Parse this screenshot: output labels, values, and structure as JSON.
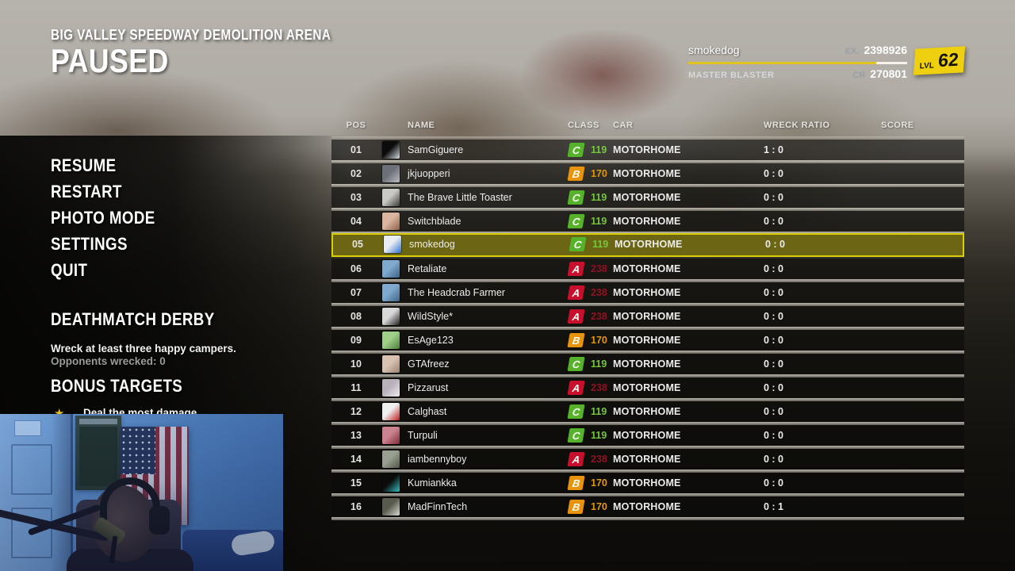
{
  "header": {
    "arena_title": "BIG VALLEY SPEEDWAY DEMOLITION ARENA",
    "paused_label": "PAUSED"
  },
  "player": {
    "name": "smokedog",
    "rank": "MASTER BLASTER",
    "ex_label": "EX.",
    "ex_value": "2398926",
    "cr_label": "CR",
    "cr_value": "270801",
    "lvl_label": "LVL",
    "level": "62",
    "xp_progress_pct": 86
  },
  "menu": {
    "items": [
      {
        "id": "resume",
        "label": "RESUME"
      },
      {
        "id": "restart",
        "label": "RESTART"
      },
      {
        "id": "photo-mode",
        "label": "PHOTO MODE"
      },
      {
        "id": "settings",
        "label": "SETTINGS"
      },
      {
        "id": "quit",
        "label": "QUIT"
      }
    ]
  },
  "objective": {
    "title": "DEATHMATCH DERBY",
    "description": "Wreck at least three happy campers.",
    "progress": "Opponents wrecked: 0"
  },
  "bonus": {
    "title": "BONUS TARGETS",
    "items": [
      {
        "icon": "star-icon",
        "label": "Deal the most damage"
      }
    ]
  },
  "scoreboard": {
    "columns": {
      "pos": "POS",
      "name": "NAME",
      "class": "CLASS",
      "car": "CAR",
      "wreck_ratio": "WRECK RATIO",
      "score": "SCORE"
    },
    "class_styles": {
      "A": {
        "badge": "#c8102e",
        "text": "#8e1322"
      },
      "B": {
        "badge": "#e8930e",
        "text": "#dd9715"
      },
      "C": {
        "badge": "#56b22a",
        "text": "#74c83c"
      }
    },
    "highlight_colors": {
      "background": "#6c6614",
      "border": "#d9ce07"
    },
    "rows": [
      {
        "pos": "01",
        "name": "SamGiguere",
        "class": "C",
        "rating": "119",
        "car": "MOTORHOME",
        "wreck_ratio": "1 : 0",
        "score": "",
        "avatar": [
          "#0c0c0c",
          "#d8dde2"
        ]
      },
      {
        "pos": "02",
        "name": "jkjuopperi",
        "class": "B",
        "rating": "170",
        "car": "MOTORHOME",
        "wreck_ratio": "0 : 0",
        "score": "",
        "avatar": [
          "#6d7077",
          "#b9bcc2"
        ]
      },
      {
        "pos": "03",
        "name": "The Brave Little Toaster",
        "class": "C",
        "rating": "119",
        "car": "MOTORHOME",
        "wreck_ratio": "0 : 0",
        "score": "",
        "avatar": [
          "#c9c9c5",
          "#3a3a3a"
        ]
      },
      {
        "pos": "04",
        "name": "Switchblade",
        "class": "C",
        "rating": "119",
        "car": "MOTORHOME",
        "wreck_ratio": "0 : 0",
        "score": "",
        "avatar": [
          "#dab59f",
          "#8d5f4a"
        ]
      },
      {
        "pos": "05",
        "name": "smokedog",
        "class": "C",
        "rating": "119",
        "car": "MOTORHOME",
        "wreck_ratio": "0 : 0",
        "score": "",
        "avatar": [
          "#e9edf3",
          "#2e6fd0"
        ],
        "highlighted": true
      },
      {
        "pos": "06",
        "name": "Retaliate",
        "class": "A",
        "rating": "238",
        "car": "MOTORHOME",
        "wreck_ratio": "0 : 0",
        "score": "",
        "avatar": [
          "#7fa9cd",
          "#3e6285"
        ]
      },
      {
        "pos": "07",
        "name": "The Headcrab Farmer",
        "class": "A",
        "rating": "238",
        "car": "MOTORHOME",
        "wreck_ratio": "0 : 0",
        "score": "",
        "avatar": [
          "#7fa9cd",
          "#3e6285"
        ]
      },
      {
        "pos": "08",
        "name": "WildStyle*",
        "class": "A",
        "rating": "238",
        "car": "MOTORHOME",
        "wreck_ratio": "0 : 0",
        "score": "",
        "avatar": [
          "#d8d8d8",
          "#1c1c1c"
        ]
      },
      {
        "pos": "09",
        "name": "EsAge123",
        "class": "B",
        "rating": "170",
        "car": "MOTORHOME",
        "wreck_ratio": "0 : 0",
        "score": "",
        "avatar": [
          "#9fd08a",
          "#4a7a38"
        ]
      },
      {
        "pos": "10",
        "name": "GTAfreez",
        "class": "C",
        "rating": "119",
        "car": "MOTORHOME",
        "wreck_ratio": "0 : 0",
        "score": "",
        "avatar": [
          "#d8c3b2",
          "#9a8070"
        ]
      },
      {
        "pos": "11",
        "name": "Pizzarust",
        "class": "A",
        "rating": "238",
        "car": "MOTORHOME",
        "wreck_ratio": "0 : 0",
        "score": "",
        "avatar": [
          "#b9b2bb",
          "#efe9ef"
        ]
      },
      {
        "pos": "12",
        "name": "Calghast",
        "class": "C",
        "rating": "119",
        "car": "MOTORHOME",
        "wreck_ratio": "0 : 0",
        "score": "",
        "avatar": [
          "#efeff0",
          "#c01a1a"
        ]
      },
      {
        "pos": "13",
        "name": "Turpuli",
        "class": "C",
        "rating": "119",
        "car": "MOTORHOME",
        "wreck_ratio": "0 : 0",
        "score": "",
        "avatar": [
          "#cc8390",
          "#7e2a3a"
        ]
      },
      {
        "pos": "14",
        "name": "iambennyboy",
        "class": "A",
        "rating": "238",
        "car": "MOTORHOME",
        "wreck_ratio": "0 : 0",
        "score": "",
        "avatar": [
          "#9aa091",
          "#4e5546"
        ]
      },
      {
        "pos": "15",
        "name": "Kumiankka",
        "class": "B",
        "rating": "170",
        "car": "MOTORHOME",
        "wreck_ratio": "0 : 0",
        "score": "",
        "avatar": [
          "#0b0b0b",
          "#35c0c0"
        ]
      },
      {
        "pos": "16",
        "name": "MadFinnTech",
        "class": "B",
        "rating": "170",
        "car": "MOTORHOME",
        "wreck_ratio": "0 : 1",
        "score": "",
        "avatar": [
          "#585a4e",
          "#d9d9cf"
        ]
      }
    ]
  },
  "colors": {
    "accent_yellow": "#efd011",
    "class_a": "#c8102e",
    "class_b": "#e8930e",
    "class_c": "#56b22a"
  }
}
